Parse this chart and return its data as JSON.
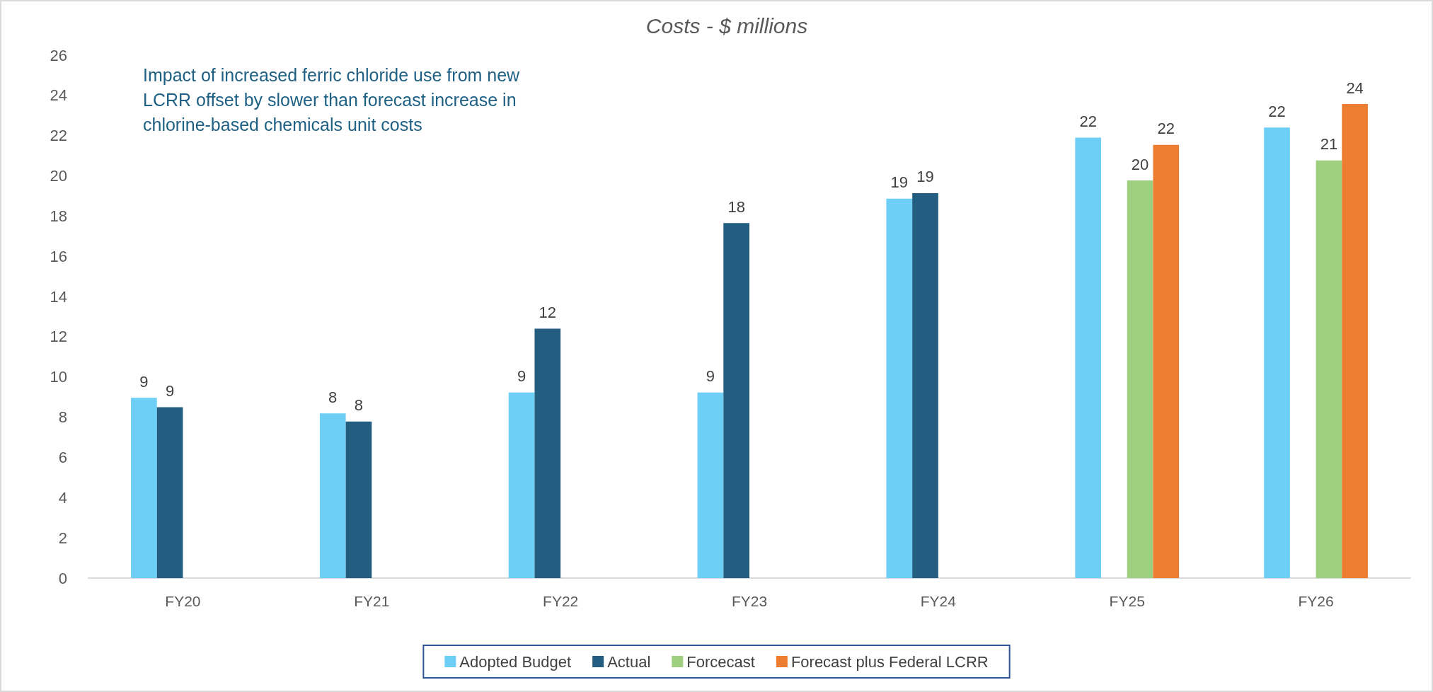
{
  "chart_data": {
    "type": "bar",
    "title": "Costs - $ millions",
    "categories": [
      "FY20",
      "FY21",
      "FY22",
      "FY23",
      "FY24",
      "FY25",
      "FY26"
    ],
    "series": [
      {
        "name": "Adopted Budget",
        "color": "#6dcff6",
        "values": [
          8.96,
          8.19,
          9.23,
          9.23,
          18.87,
          21.9,
          22.4
        ],
        "value_labels": [
          "9",
          "8",
          "9",
          "9",
          "19",
          "22",
          "22"
        ]
      },
      {
        "name": "Actual",
        "color": "#235d80",
        "values": [
          8.5,
          7.78,
          12.4,
          17.65,
          19.14,
          null,
          null
        ],
        "value_labels": [
          "9",
          "8",
          "12",
          "18",
          "19",
          null,
          null
        ]
      },
      {
        "name": "Forcecast",
        "color": "#9ed07f",
        "values": [
          null,
          null,
          null,
          null,
          null,
          19.77,
          20.77
        ],
        "value_labels": [
          null,
          null,
          null,
          null,
          null,
          "20",
          "21"
        ]
      },
      {
        "name": "Forecast plus Federal LCRR",
        "color": "#ed7d31",
        "values": [
          null,
          null,
          null,
          null,
          null,
          21.54,
          23.57
        ],
        "value_labels": [
          null,
          null,
          null,
          null,
          null,
          "22",
          "24"
        ]
      }
    ],
    "ylim": [
      0,
      26
    ],
    "yticks": [
      0,
      2,
      4,
      6,
      8,
      10,
      12,
      14,
      16,
      18,
      20,
      22,
      24,
      26
    ],
    "grid": false,
    "legend": "bottom",
    "annotations": [
      "Impact of increased ferric chloride use from new LCRR offset by slower than forecast increase in chlorine-based chemicals unit costs"
    ]
  }
}
